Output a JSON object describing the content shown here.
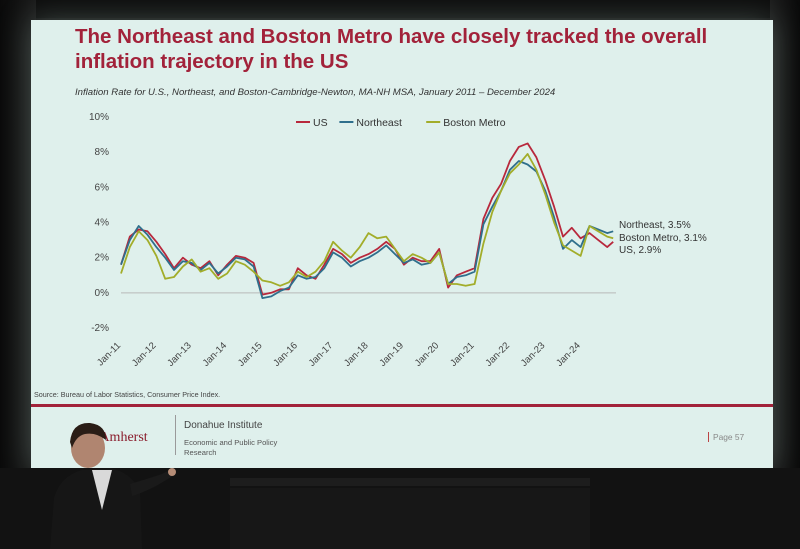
{
  "slide": {
    "title": "The Northeast and Boston Metro have closely tracked the overall inflation trajectory in the US",
    "subtitle": "Inflation Rate for U.S., Northeast, and Boston-Cambridge-Newton, MA-NH MSA, January 2011 – December 2024",
    "source": "Source: Bureau of Labor Statistics, Consumer Price Index.",
    "footer": {
      "logo": "sAmherst",
      "institute": "Donahue Institute",
      "institute_sub": "Economic and Public Policy Research",
      "page": "Page 57"
    }
  },
  "chart_data": {
    "type": "line",
    "title": "",
    "xlabel": "",
    "ylabel": "",
    "ylim": [
      -2,
      10
    ],
    "yticks": [
      "10%",
      "8%",
      "6%",
      "4%",
      "2%",
      "0%",
      "-2%"
    ],
    "categories": [
      "Jan-11",
      "Jan-12",
      "Jan-13",
      "Jan-14",
      "Jan-15",
      "Jan-16",
      "Jan-17",
      "Jan-18",
      "Jan-19",
      "Jan-20",
      "Jan-21",
      "Jan-22",
      "Jan-23",
      "Jan-24"
    ],
    "legend_position": "top",
    "series": [
      {
        "name": "US",
        "color": "#b8283c",
        "end_label": "US, 2.9%",
        "x": [
          2011.0,
          2011.25,
          2011.5,
          2011.75,
          2012.0,
          2012.25,
          2012.5,
          2012.75,
          2013.0,
          2013.25,
          2013.5,
          2013.75,
          2014.0,
          2014.25,
          2014.5,
          2014.75,
          2015.0,
          2015.25,
          2015.5,
          2015.75,
          2016.0,
          2016.25,
          2016.5,
          2016.75,
          2017.0,
          2017.25,
          2017.5,
          2017.75,
          2018.0,
          2018.25,
          2018.5,
          2018.75,
          2019.0,
          2019.25,
          2019.5,
          2019.75,
          2020.0,
          2020.25,
          2020.5,
          2020.75,
          2021.0,
          2021.25,
          2021.5,
          2021.75,
          2022.0,
          2022.25,
          2022.5,
          2022.75,
          2023.0,
          2023.25,
          2023.5,
          2023.75,
          2024.0,
          2024.25,
          2024.5,
          2024.75,
          2024.92
        ],
        "values": [
          1.6,
          3.2,
          3.6,
          3.5,
          2.9,
          2.2,
          1.4,
          2.0,
          1.6,
          1.4,
          1.8,
          1.0,
          1.6,
          2.1,
          2.0,
          1.7,
          -0.1,
          0.0,
          0.2,
          0.2,
          1.4,
          1.0,
          0.8,
          1.6,
          2.5,
          2.2,
          1.7,
          2.0,
          2.2,
          2.5,
          2.9,
          2.5,
          1.6,
          2.0,
          1.8,
          1.8,
          2.5,
          0.3,
          1.0,
          1.2,
          1.4,
          4.2,
          5.4,
          6.2,
          7.5,
          8.3,
          8.5,
          7.7,
          6.4,
          4.9,
          3.2,
          3.7,
          3.1,
          3.4,
          3.0,
          2.6,
          2.9
        ]
      },
      {
        "name": "Northeast",
        "color": "#2f6f8c",
        "end_label": "Northeast, 3.5%",
        "x": [
          2011.0,
          2011.25,
          2011.5,
          2011.75,
          2012.0,
          2012.25,
          2012.5,
          2012.75,
          2013.0,
          2013.25,
          2013.5,
          2013.75,
          2014.0,
          2014.25,
          2014.5,
          2014.75,
          2015.0,
          2015.25,
          2015.5,
          2015.75,
          2016.0,
          2016.25,
          2016.5,
          2016.75,
          2017.0,
          2017.25,
          2017.5,
          2017.75,
          2018.0,
          2018.25,
          2018.5,
          2018.75,
          2019.0,
          2019.25,
          2019.5,
          2019.75,
          2020.0,
          2020.25,
          2020.5,
          2020.75,
          2021.0,
          2021.25,
          2021.5,
          2021.75,
          2022.0,
          2022.25,
          2022.5,
          2022.75,
          2023.0,
          2023.25,
          2023.5,
          2023.75,
          2024.0,
          2024.25,
          2024.5,
          2024.75,
          2024.92
        ],
        "values": [
          1.6,
          3.0,
          3.8,
          3.3,
          2.6,
          2.0,
          1.3,
          1.8,
          1.7,
          1.3,
          1.7,
          1.1,
          1.5,
          2.0,
          1.9,
          1.5,
          -0.3,
          -0.2,
          0.1,
          0.3,
          1.0,
          0.8,
          0.9,
          1.4,
          2.3,
          2.0,
          1.5,
          1.8,
          2.0,
          2.3,
          2.7,
          2.2,
          1.7,
          1.9,
          1.6,
          1.7,
          2.3,
          0.5,
          0.9,
          1.0,
          1.2,
          3.9,
          4.9,
          5.8,
          7.0,
          7.5,
          7.3,
          6.9,
          5.8,
          4.3,
          2.5,
          3.0,
          2.6,
          3.8,
          3.6,
          3.4,
          3.5
        ]
      },
      {
        "name": "Boston Metro",
        "color": "#a2ad2a",
        "end_label": "Boston Metro, 3.1%",
        "x": [
          2011.0,
          2011.25,
          2011.5,
          2011.75,
          2012.0,
          2012.25,
          2012.5,
          2012.75,
          2013.0,
          2013.25,
          2013.5,
          2013.75,
          2014.0,
          2014.25,
          2014.5,
          2014.75,
          2015.0,
          2015.25,
          2015.5,
          2015.75,
          2016.0,
          2016.25,
          2016.5,
          2016.75,
          2017.0,
          2017.25,
          2017.5,
          2017.75,
          2018.0,
          2018.25,
          2018.5,
          2018.75,
          2019.0,
          2019.25,
          2019.5,
          2019.75,
          2020.0,
          2020.25,
          2020.5,
          2020.75,
          2021.0,
          2021.25,
          2021.5,
          2021.75,
          2022.0,
          2022.25,
          2022.5,
          2022.75,
          2023.0,
          2023.25,
          2023.5,
          2023.75,
          2024.0,
          2024.25,
          2024.5,
          2024.75,
          2024.92
        ],
        "values": [
          1.1,
          2.6,
          3.5,
          3.0,
          2.1,
          0.8,
          0.9,
          1.5,
          1.9,
          1.2,
          1.4,
          0.8,
          1.1,
          1.8,
          1.6,
          1.2,
          0.7,
          0.6,
          0.4,
          0.6,
          1.2,
          0.9,
          1.2,
          1.8,
          2.9,
          2.4,
          2.0,
          2.6,
          3.4,
          3.1,
          3.2,
          2.5,
          1.8,
          2.2,
          2.0,
          1.7,
          2.3,
          0.5,
          0.5,
          0.4,
          0.5,
          2.8,
          4.6,
          5.8,
          6.8,
          7.3,
          7.9,
          7.0,
          5.6,
          4.0,
          2.7,
          2.4,
          2.1,
          3.8,
          3.5,
          3.2,
          3.1
        ]
      }
    ]
  }
}
